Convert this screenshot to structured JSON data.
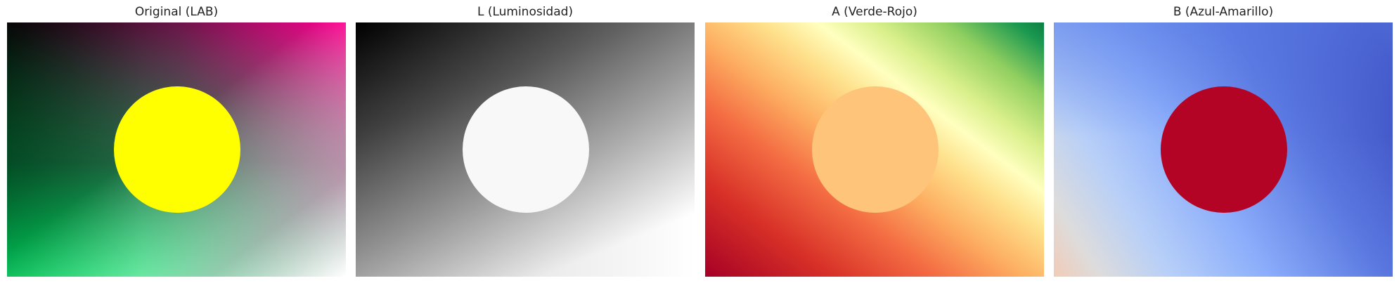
{
  "figure": {
    "panels": [
      {
        "title": "Original (LAB)",
        "circle_color": "#ffff00",
        "colors": {
          "top_left": "#080808",
          "top_right": "#ff0090",
          "bottom_left": "#00ff70",
          "bottom_right": "#ffffff",
          "left_mid": "#008a3a",
          "top_mid": "#7a1650"
        }
      },
      {
        "title": "L (Luminosidad)",
        "circle_color": "#f8f8f8",
        "colors": {
          "dark": "#000000",
          "light": "#ffffff"
        }
      },
      {
        "title": "A (Verde-Rojo)",
        "circle_color": "#fdc47a",
        "colors": {
          "ramp": [
            "#ffffbf",
            "#d9ef8b",
            "#91cf60",
            "#1a9850",
            "#006837"
          ],
          "ramp_red": [
            "#ffffbf",
            "#fee08b",
            "#fc8d59",
            "#d73027",
            "#a50026"
          ]
        }
      },
      {
        "title": "B (Azul-Amarillo)",
        "circle_color": "#b40426",
        "colors": {
          "top_right": "#3b4cc0",
          "top_left": "#6688ee",
          "mid": "#aac7fd",
          "bottom_left": "#f2cbb7",
          "bottom_mid": "#dddcdc"
        }
      }
    ]
  }
}
